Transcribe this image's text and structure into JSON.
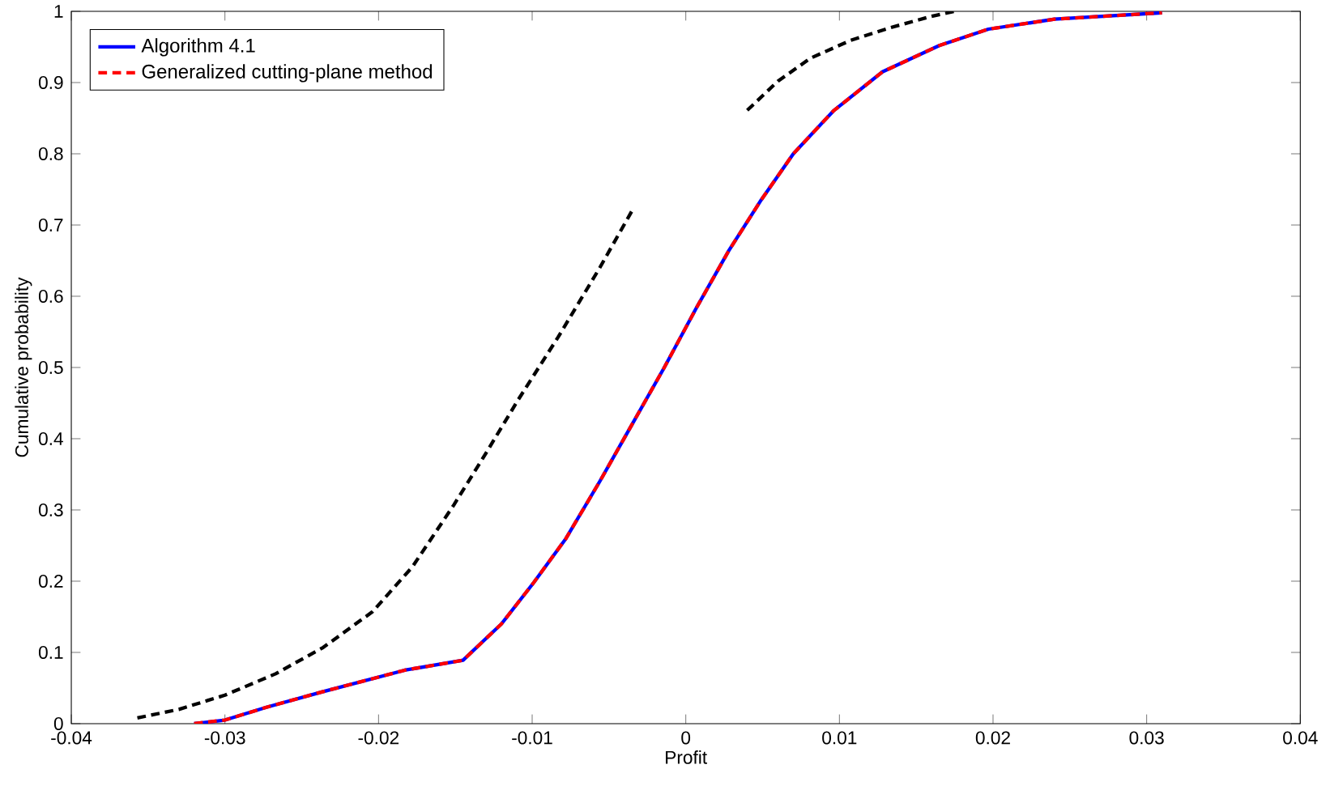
{
  "chart_data": {
    "type": "line",
    "xlabel": "Profit",
    "ylabel": "Cumulative probability",
    "xlim": [
      -0.04,
      0.04
    ],
    "ylim": [
      0,
      1
    ],
    "xticks": [
      -0.04,
      -0.03,
      -0.02,
      -0.01,
      0,
      0.01,
      0.02,
      0.03,
      0.04
    ],
    "yticks": [
      0,
      0.1,
      0.2,
      0.3,
      0.4,
      0.5,
      0.6,
      0.7,
      0.8,
      0.9,
      1
    ],
    "grid": false,
    "legend": "top left",
    "marker": "none",
    "series": [
      {
        "name": "Algorithm 4.1",
        "color": "#0000ff",
        "line_style": "solid",
        "x": [
          -0.032,
          -0.03,
          -0.0273,
          -0.0236,
          -0.0183,
          -0.0145,
          -0.012,
          -0.0099,
          -0.0078,
          -0.0056,
          -0.0035,
          -0.0014,
          0.0007,
          0.0028,
          0.0049,
          0.007,
          0.0096,
          0.0128,
          0.0165,
          0.0197,
          0.024,
          0.031
        ],
        "values": [
          0,
          0.005,
          0.023,
          0.045,
          0.075,
          0.089,
          0.14,
          0.198,
          0.26,
          0.34,
          0.42,
          0.5,
          0.584,
          0.664,
          0.735,
          0.8,
          0.86,
          0.915,
          0.952,
          0.975,
          0.989,
          0.998
        ]
      },
      {
        "color": "#000000",
        "line_style": "dashed",
        "x": [
          -0.0357,
          -0.033,
          -0.03,
          -0.0267,
          -0.0236,
          -0.0204,
          -0.0178,
          -0.0151,
          -0.013,
          -0.0109,
          -0.0083,
          -0.0056,
          -0.0035,
          -0.001,
          0.004,
          0.006,
          0.0081,
          0.0107,
          0.0133,
          0.016,
          0.0175
        ],
        "values": [
          0.008,
          0.02,
          0.04,
          0.07,
          0.107,
          0.157,
          0.22,
          0.307,
          0.38,
          0.455,
          0.543,
          0.64,
          0.72,
          null,
          0.861,
          0.902,
          0.934,
          0.959,
          0.977,
          0.993,
          1
        ]
      },
      {
        "name": "Generalized cutting-plane method",
        "color": "#ff0000",
        "line_style": "dashed",
        "x": [
          -0.032,
          -0.03,
          -0.0273,
          -0.0236,
          -0.0183,
          -0.0145,
          -0.012,
          -0.0099,
          -0.0078,
          -0.0056,
          -0.0035,
          -0.0014,
          0.0007,
          0.0028,
          0.0049,
          0.007,
          0.0096,
          0.0128,
          0.0165,
          0.0197,
          0.024,
          0.031
        ],
        "values": [
          0,
          0.005,
          0.023,
          0.045,
          0.075,
          0.089,
          0.14,
          0.198,
          0.26,
          0.34,
          0.42,
          0.5,
          0.584,
          0.664,
          0.735,
          0.8,
          0.86,
          0.915,
          0.952,
          0.975,
          0.989,
          0.998
        ]
      }
    ]
  }
}
